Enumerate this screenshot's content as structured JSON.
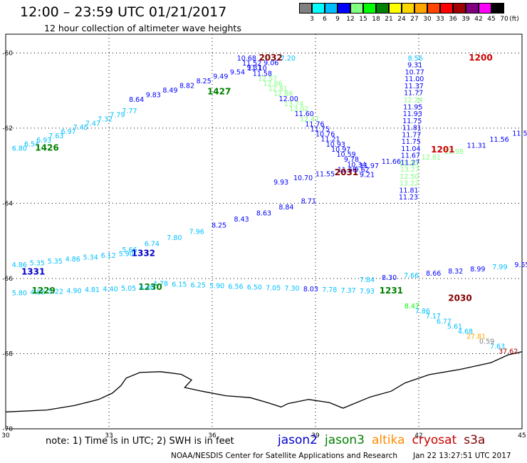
{
  "title": "12:00 – 23:59 UTC 01/21/2017",
  "subtitle": "12 hour collection of altimeter wave heights",
  "color_scale": {
    "unit": "(ft)",
    "stops": [
      {
        "label": "3",
        "color": "#808080"
      },
      {
        "label": "6",
        "color": "#00ffff"
      },
      {
        "label": "9",
        "color": "#00bfff"
      },
      {
        "label": "12",
        "color": "#0000ff"
      },
      {
        "label": "15",
        "color": "#80ff80"
      },
      {
        "label": "18",
        "color": "#00ff00"
      },
      {
        "label": "21",
        "color": "#008000"
      },
      {
        "label": "24",
        "color": "#ffff00"
      },
      {
        "label": "27",
        "color": "#ffd700"
      },
      {
        "label": "30",
        "color": "#ffa500"
      },
      {
        "label": "33",
        "color": "#ff4500"
      },
      {
        "label": "36",
        "color": "#ff0000"
      },
      {
        "label": "39",
        "color": "#a00000"
      },
      {
        "label": "42",
        "color": "#800080"
      },
      {
        "label": "45",
        "color": "#ff00ff"
      },
      {
        "label": "70",
        "color": "#000000"
      }
    ]
  },
  "axes": {
    "lon_labels": [
      "30",
      "33",
      "36",
      "39",
      "42",
      "45"
    ],
    "lat_labels": [
      "-60",
      "-62",
      "-64",
      "-66",
      "-68",
      "-70"
    ],
    "lon_range": [
      30,
      45
    ],
    "lat_range": [
      -70,
      -59.5
    ]
  },
  "tracks": [
    {
      "sat": "jason2",
      "pass_time": "1200",
      "time_color": "#cc0000",
      "time_lonlat": [
        43.8,
        -60.2
      ],
      "start": [
        41.9,
        -60.2
      ],
      "end": [
        41.7,
        -63.9
      ],
      "values": [
        [
          "8.56",
          "#00bfff"
        ],
        [
          "9.31",
          "#0000ff"
        ],
        [
          "10.77",
          "#0000ff"
        ],
        [
          "11.00",
          "#0000ff"
        ],
        [
          "11.37",
          "#0000ff"
        ],
        [
          "11.77",
          "#0000ff"
        ],
        [
          "12.24",
          "#80ff80"
        ],
        [
          "11.95",
          "#0000ff"
        ],
        [
          "11.93",
          "#0000ff"
        ],
        [
          "11.75",
          "#0000ff"
        ],
        [
          "11.81",
          "#0000ff"
        ],
        [
          "11.77",
          "#0000ff"
        ],
        [
          "11.75",
          "#0000ff"
        ],
        [
          "11.04",
          "#0000ff"
        ],
        [
          "11.67",
          "#0000ff"
        ],
        [
          "11.27",
          "#0000ff"
        ],
        [
          "13.27",
          "#80ff80"
        ],
        [
          "12.50",
          "#80ff80"
        ],
        [
          "13.22",
          "#80ff80"
        ],
        [
          "11.81",
          "#0000ff"
        ],
        [
          "11.23",
          "#0000ff"
        ]
      ]
    },
    {
      "sat": "jason2",
      "pass_time": "1201",
      "time_color": "#cc0000",
      "time_lonlat": [
        42.7,
        -62.65
      ],
      "start": [
        45.0,
        -62.2
      ],
      "end": [
        41.7,
        -63.0
      ],
      "values": [
        [
          "11.54",
          "#0000ff"
        ],
        [
          "11.56",
          "#0000ff"
        ],
        [
          "11.31",
          "#0000ff"
        ],
        [
          "12.98",
          "#80ff80"
        ],
        [
          "12.81",
          "#80ff80"
        ],
        [
          "12.20",
          "#80ff80"
        ]
      ]
    },
    {
      "sat": "jason2",
      "pass_time": "2031",
      "time_color": "#800000",
      "time_lonlat": [
        39.9,
        -63.25
      ],
      "start": [
        41.2,
        -62.95
      ],
      "end": [
        38.0,
        -63.5
      ],
      "values": [
        [
          "11.66",
          "#0000ff"
        ],
        [
          "11.97",
          "#0000ff"
        ],
        [
          "11.60",
          "#0000ff"
        ],
        [
          "11.55",
          "#0000ff"
        ],
        [
          "10.70",
          "#0000ff"
        ],
        [
          "9.93",
          "#0000ff"
        ]
      ]
    },
    {
      "sat": "jason2",
      "pass_time": "2032",
      "time_color": "#800000",
      "time_lonlat": [
        37.7,
        -60.2
      ],
      "start": [
        37.0,
        -60.2
      ],
      "end": [
        40.5,
        -63.3
      ],
      "values": [
        [
          "10.68",
          "#0000ff"
        ],
        [
          "11.52",
          "#0000ff"
        ],
        [
          "11.10",
          "#0000ff"
        ],
        [
          "11.58",
          "#0000ff"
        ],
        [
          "12.57",
          "#80ff80"
        ],
        [
          "12.86",
          "#80ff80"
        ],
        [
          "12.81",
          "#80ff80"
        ],
        [
          "12.86",
          "#80ff80"
        ],
        [
          "12.00",
          "#0000ff"
        ],
        [
          "13.74",
          "#80ff80"
        ],
        [
          "13.02",
          "#80ff80"
        ],
        [
          "11.60",
          "#0000ff"
        ],
        [
          "12.47",
          "#80ff80"
        ],
        [
          "11.76",
          "#0000ff"
        ],
        [
          "11.75",
          "#0000ff"
        ],
        [
          "10.76",
          "#0000ff"
        ],
        [
          "11.21",
          "#0000ff"
        ],
        [
          "10.93",
          "#0000ff"
        ],
        [
          "10.97",
          "#0000ff"
        ],
        [
          "10.59",
          "#0000ff"
        ],
        [
          "9.78",
          "#0000ff"
        ],
        [
          "10.34",
          "#0000ff"
        ],
        [
          "9.62",
          "#0000ff"
        ],
        [
          "9.21",
          "#0000ff"
        ]
      ]
    },
    {
      "sat": "jason2",
      "pass_time": "2030",
      "time_color": "#800000",
      "time_lonlat": [
        43.2,
        -66.6
      ],
      "start": [
        41.8,
        -66.8
      ],
      "end": [
        44.6,
        -68.0
      ],
      "values": [
        [
          "8.47",
          "#00ff00"
        ],
        [
          "7.86",
          "#00bfff"
        ],
        [
          "7.17",
          "#00bfff"
        ],
        [
          "6.77",
          "#00bfff"
        ],
        [
          "5.61",
          "#00bfff"
        ],
        [
          "4.68",
          "#00bfff"
        ],
        [
          "27.81",
          "#ffa500"
        ],
        [
          "0.59",
          "#808080"
        ],
        [
          "7.63",
          "#00bfff"
        ],
        [
          "37.62",
          "#a00000"
        ]
      ]
    },
    {
      "sat": "jason3",
      "pass_time": "1427",
      "time_color": "#008000",
      "time_lonlat": [
        36.2,
        -61.1
      ],
      "start": [
        38.2,
        -60.2
      ],
      "end": [
        33.8,
        -61.3
      ],
      "values": [
        [
          "7.20",
          "#00bfff"
        ],
        [
          "9.06",
          "#0000ff"
        ],
        [
          "9.31",
          "#0000ff"
        ],
        [
          "9.54",
          "#0000ff"
        ],
        [
          "9.49",
          "#0000ff"
        ],
        [
          "8.25",
          "#0000ff"
        ],
        [
          "8.82",
          "#0000ff"
        ],
        [
          "8.49",
          "#0000ff"
        ],
        [
          "9.83",
          "#0000ff"
        ],
        [
          "8.64",
          "#0000ff"
        ]
      ]
    },
    {
      "sat": "jason3",
      "pass_time": "1426",
      "time_color": "#008000",
      "time_lonlat": [
        31.2,
        -62.6
      ],
      "start": [
        30.4,
        -62.6
      ],
      "end": [
        33.6,
        -61.6
      ],
      "values": [
        [
          "6.80",
          "#00bfff"
        ],
        [
          "6.54",
          "#00bfff"
        ],
        [
          "6.93",
          "#00bfff"
        ],
        [
          "7.63",
          "#00bfff"
        ],
        [
          "6.97",
          "#00bfff"
        ],
        [
          "7.45",
          "#00bfff"
        ],
        [
          "7.47",
          "#00bfff"
        ],
        [
          "7.32",
          "#00bfff"
        ],
        [
          "7.79",
          "#00bfff"
        ],
        [
          "7.77",
          "#00bfff"
        ]
      ]
    },
    {
      "sat": "jason2",
      "pass_time": "1332",
      "time_color": "#0000cc",
      "time_lonlat": [
        34.0,
        -65.4
      ],
      "start": [
        33.6,
        -65.3
      ],
      "end": [
        38.8,
        -64.0
      ],
      "values": [
        [
          "5.66",
          "#00bfff"
        ],
        [
          "6.74",
          "#00bfff"
        ],
        [
          "7.80",
          "#00bfff"
        ],
        [
          "7.96",
          "#00bfff"
        ],
        [
          "8.25",
          "#0000ff"
        ],
        [
          "8.43",
          "#0000ff"
        ],
        [
          "8.63",
          "#0000ff"
        ],
        [
          "8.84",
          "#0000ff"
        ],
        [
          "8.71",
          "#0000ff"
        ]
      ]
    },
    {
      "sat": "jason2",
      "pass_time": "1331",
      "time_color": "#0000cc",
      "time_lonlat": [
        30.8,
        -65.9
      ],
      "start": [
        30.4,
        -65.7
      ],
      "end": [
        33.5,
        -65.4
      ],
      "values": [
        [
          "4.86",
          "#00bfff"
        ],
        [
          "5.35",
          "#00bfff"
        ],
        [
          "5.35",
          "#00bfff"
        ],
        [
          "4.86",
          "#00bfff"
        ],
        [
          "5.34",
          "#00bfff"
        ],
        [
          "6.12",
          "#00bfff"
        ],
        [
          "5.90",
          "#00bfff"
        ]
      ]
    },
    {
      "sat": "jason3",
      "pass_time": "1231",
      "time_color": "#008000",
      "time_lonlat": [
        41.2,
        -66.4
      ],
      "start": [
        40.5,
        -66.1
      ],
      "end": [
        45.0,
        -65.7
      ],
      "values": [
        [
          "7.84",
          "#00bfff"
        ],
        [
          "8.30",
          "#0000ff"
        ],
        [
          "7.66",
          "#00bfff"
        ],
        [
          "8.66",
          "#0000ff"
        ],
        [
          "8.32",
          "#0000ff"
        ],
        [
          "8.99",
          "#0000ff"
        ],
        [
          "7.99",
          "#00bfff"
        ],
        [
          "9.55",
          "#0000ff"
        ]
      ]
    },
    {
      "sat": "jason3",
      "pass_time": "1230",
      "time_color": "#008000",
      "time_lonlat": [
        34.2,
        -66.3
      ],
      "start": [
        34.5,
        -66.2
      ],
      "end": [
        40.5,
        -66.4
      ],
      "values": [
        [
          "4.78",
          "#00bfff"
        ],
        [
          "6.15",
          "#00bfff"
        ],
        [
          "6.25",
          "#00bfff"
        ],
        [
          "5.90",
          "#00bfff"
        ],
        [
          "6.56",
          "#00bfff"
        ],
        [
          "6.50",
          "#00bfff"
        ],
        [
          "7.05",
          "#00bfff"
        ],
        [
          "7.30",
          "#00bfff"
        ],
        [
          "8.03",
          "#0000ff"
        ],
        [
          "7.78",
          "#00bfff"
        ],
        [
          "7.37",
          "#00bfff"
        ],
        [
          "7.93",
          "#00bfff"
        ]
      ]
    },
    {
      "sat": "jason3",
      "pass_time": "1229",
      "time_color": "#008000",
      "time_lonlat": [
        31.1,
        -66.4
      ],
      "start": [
        30.4,
        -66.45
      ],
      "end": [
        34.1,
        -66.3
      ],
      "values": [
        [
          "5.80",
          "#00bfff"
        ],
        [
          "4.88",
          "#00bfff"
        ],
        [
          "5.22",
          "#00bfff"
        ],
        [
          "4.90",
          "#00bfff"
        ],
        [
          "4.81",
          "#00bfff"
        ],
        [
          "4.40",
          "#00bfff"
        ],
        [
          "5.05",
          "#00bfff"
        ],
        [
          "4.40",
          "#00bfff"
        ]
      ]
    }
  ],
  "coastline_lonlat": [
    [
      30.0,
      -69.55
    ],
    [
      31.2,
      -69.5
    ],
    [
      32.0,
      -69.38
    ],
    [
      32.7,
      -69.22
    ],
    [
      33.1,
      -69.05
    ],
    [
      33.35,
      -68.85
    ],
    [
      33.5,
      -68.65
    ],
    [
      33.9,
      -68.5
    ],
    [
      34.5,
      -68.48
    ],
    [
      35.1,
      -68.55
    ],
    [
      35.4,
      -68.7
    ],
    [
      35.2,
      -68.9
    ],
    [
      35.7,
      -69.0
    ],
    [
      36.4,
      -69.12
    ],
    [
      37.1,
      -69.17
    ],
    [
      37.6,
      -69.3
    ],
    [
      38.0,
      -69.42
    ],
    [
      38.2,
      -69.33
    ],
    [
      38.8,
      -69.22
    ],
    [
      39.4,
      -69.3
    ],
    [
      39.8,
      -69.45
    ],
    [
      40.6,
      -69.15
    ],
    [
      41.2,
      -69.0
    ],
    [
      41.6,
      -68.78
    ],
    [
      42.3,
      -68.56
    ],
    [
      43.2,
      -68.42
    ],
    [
      44.1,
      -68.24
    ],
    [
      44.6,
      -68.03
    ],
    [
      45.0,
      -67.95
    ]
  ],
  "note": "note: 1) Time is in UTC; 2) SWH is in feet",
  "legend": [
    {
      "label": "jason2",
      "color": "#0000cc"
    },
    {
      "label": "jason3",
      "color": "#008000"
    },
    {
      "label": "altika",
      "color": "#ff8c00"
    },
    {
      "label": "cryosat",
      "color": "#cc0000"
    },
    {
      "label": "s3a",
      "color": "#800000"
    }
  ],
  "credit": "NOAA/NESDIS Center for Satellite Applications and Research",
  "timestamp": "Jan 22 13:27:51 UTC 2017"
}
